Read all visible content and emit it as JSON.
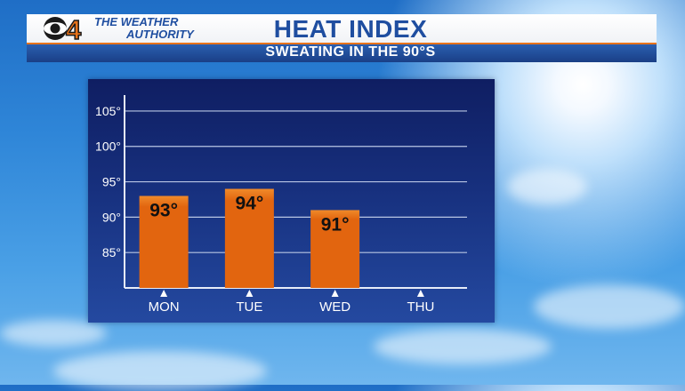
{
  "branding": {
    "channel_number": "4",
    "tagline_line1": "THE WEATHER",
    "tagline_line2": "AUTHORITY"
  },
  "header": {
    "title": "HEAT INDEX",
    "subtitle": "SWEATING IN THE 90°S"
  },
  "colors": {
    "bar": "#e2650f",
    "bar_top": "#f08a2a",
    "title_blue": "#1f4ea0",
    "accent_orange": "#e8731a"
  },
  "chart_data": {
    "type": "bar",
    "categories": [
      "MON",
      "TUE",
      "WED",
      "THU"
    ],
    "values": [
      93,
      94,
      91,
      null
    ],
    "data_labels": [
      "93°",
      "94°",
      "91°",
      ""
    ],
    "y_ticks": [
      85,
      90,
      95,
      100,
      105
    ],
    "y_tick_labels": [
      "85°",
      "90°",
      "95°",
      "100°",
      "105°"
    ],
    "ylim": [
      80,
      107
    ],
    "grid": true,
    "legend": "none",
    "title": "",
    "xlabel": "",
    "ylabel": ""
  }
}
